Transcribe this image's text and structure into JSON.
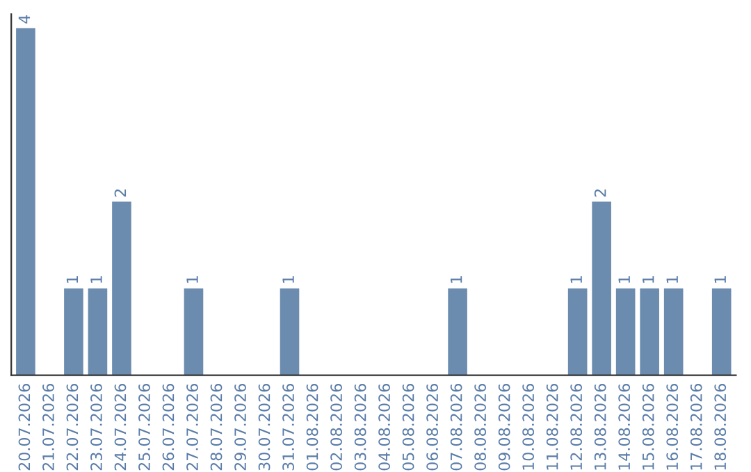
{
  "chart_data": {
    "type": "bar",
    "categories": [
      "20.07.2026",
      "21.07.2026",
      "22.07.2026",
      "23.07.2026",
      "24.07.2026",
      "25.07.2026",
      "26.07.2026",
      "27.07.2026",
      "28.07.2026",
      "29.07.2026",
      "30.07.2026",
      "31.07.2026",
      "01.08.2026",
      "02.08.2026",
      "03.08.2026",
      "04.08.2026",
      "05.08.2026",
      "06.08.2026",
      "07.08.2026",
      "08.08.2026",
      "09.08.2026",
      "10.08.2026",
      "11.08.2026",
      "12.08.2026",
      "13.08.2026",
      "14.08.2026",
      "15.08.2026",
      "16.08.2026",
      "17.08.2026",
      "18.08.2026"
    ],
    "values": [
      4,
      0,
      1,
      1,
      2,
      0,
      0,
      1,
      0,
      0,
      0,
      1,
      0,
      0,
      0,
      0,
      0,
      0,
      1,
      0,
      0,
      0,
      0,
      1,
      2,
      1,
      1,
      1,
      0,
      1
    ],
    "value_labels": [
      "4",
      null,
      "1",
      "1",
      "2",
      null,
      null,
      "1",
      null,
      null,
      null,
      "1",
      null,
      null,
      null,
      null,
      null,
      null,
      "1",
      null,
      null,
      null,
      null,
      "1",
      "2",
      "1",
      "1",
      "1",
      null,
      "1"
    ],
    "color": "#6b8cae",
    "grid": false,
    "legend": false
  }
}
